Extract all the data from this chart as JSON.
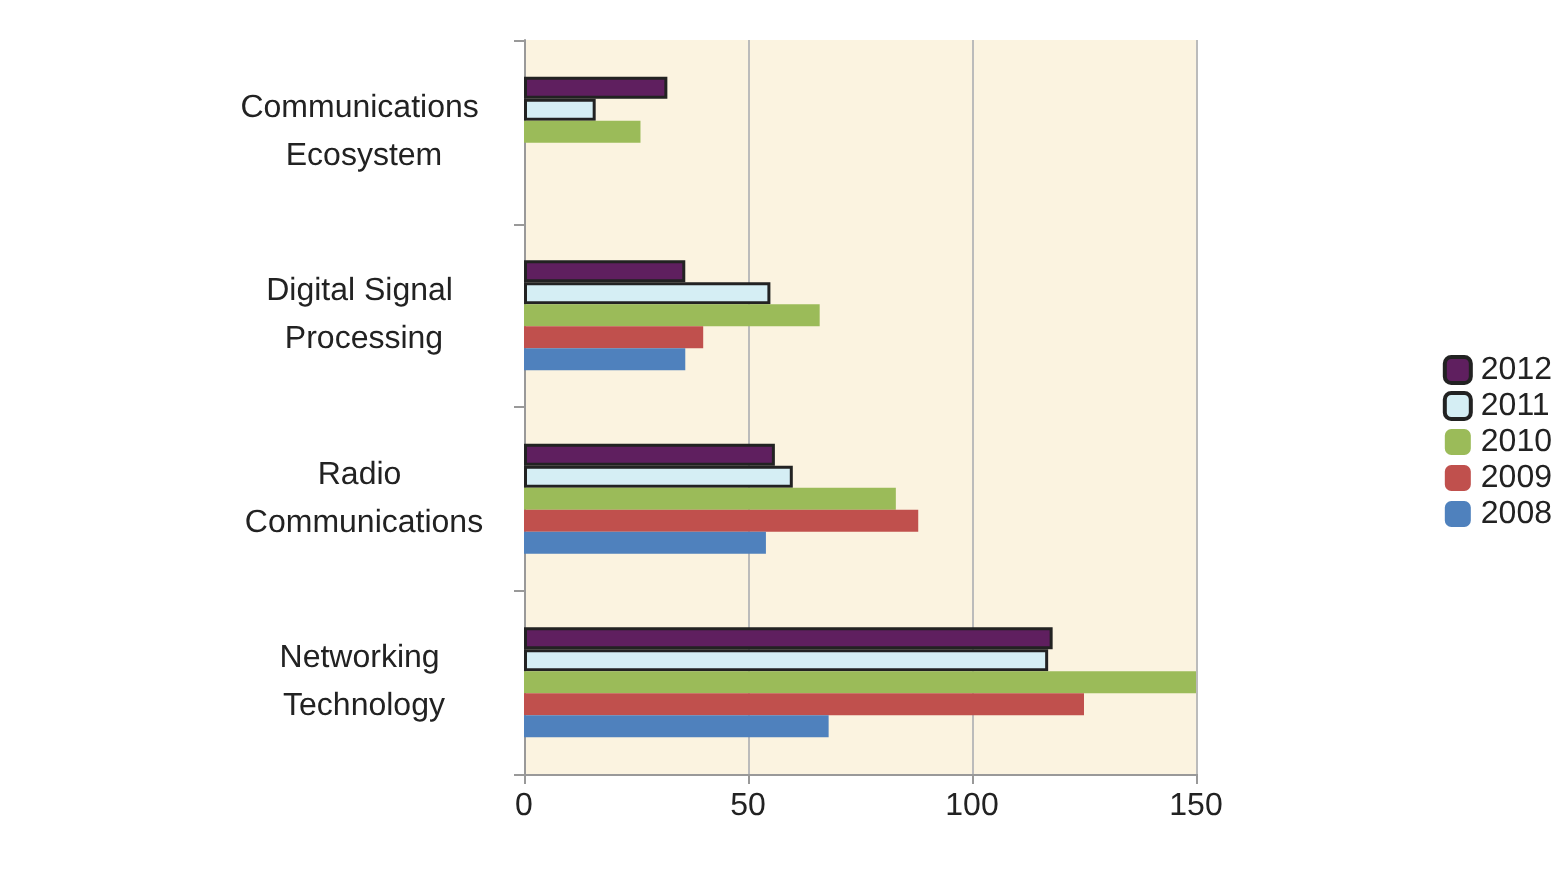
{
  "chart_data": {
    "type": "bar",
    "orientation": "horizontal",
    "categories": [
      "Communications Ecosystem",
      "Digital Signal Processing",
      "Radio Communications",
      "Networking Technology"
    ],
    "series": [
      {
        "name": "2012",
        "color": "#5f1f5f",
        "values": [
          32,
          36,
          56,
          118
        ]
      },
      {
        "name": "2011",
        "color": "#d5eef4",
        "values": [
          16,
          55,
          60,
          117
        ]
      },
      {
        "name": "2010",
        "color": "#9bbb59",
        "values": [
          26,
          66,
          83,
          150
        ]
      },
      {
        "name": "2009",
        "color": "#c0504d",
        "values": [
          null,
          40,
          88,
          125
        ]
      },
      {
        "name": "2008",
        "color": "#4f81bd",
        "values": [
          null,
          36,
          54,
          68
        ]
      }
    ],
    "xlim": [
      0,
      150
    ],
    "xticks": [
      0,
      50,
      100,
      150
    ],
    "grid": "x",
    "legend": "right"
  }
}
